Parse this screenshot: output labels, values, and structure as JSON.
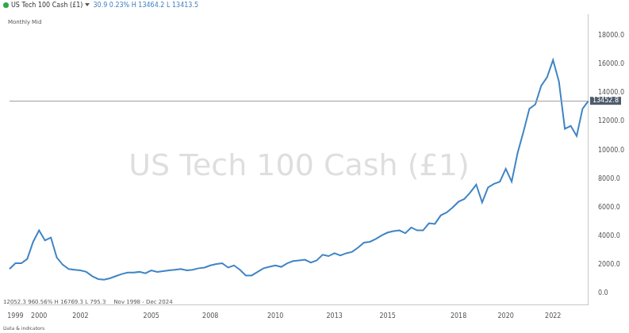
{
  "chart_data": {
    "type": "line",
    "title": "US Tech 100 Cash (£1)",
    "subtitle": "30.9 0.23% H 13464.2 L 13413.5",
    "annotations": [
      "Monthly",
      "Mid",
      "12052.3 960.56% H 16769.3 L 795.3",
      "Nov 1998 - Dec 2024",
      "Data & indicators"
    ],
    "last_value": 13452.8,
    "color": "#3f84c5",
    "grid": false,
    "categories": [
      null,
      "1999",
      null,
      null,
      null,
      "2000",
      null,
      null,
      null,
      null,
      null,
      null,
      "2002",
      null,
      null,
      null,
      null,
      null,
      null,
      null,
      null,
      null,
      null,
      null,
      "2005",
      null,
      null,
      null,
      null,
      null,
      null,
      null,
      null,
      null,
      "2008",
      null,
      null,
      null,
      null,
      null,
      null,
      null,
      null,
      null,
      null,
      "2010",
      null,
      null,
      null,
      null,
      null,
      null,
      null,
      null,
      null,
      "2013",
      null,
      null,
      null,
      null,
      null,
      null,
      null,
      null,
      "2015",
      null,
      null,
      null,
      null,
      null,
      null,
      null,
      null,
      null,
      null,
      null,
      "2018",
      null,
      null,
      null,
      null,
      null,
      null,
      null,
      "2020",
      null,
      null,
      null,
      null,
      null,
      null,
      null,
      "2022",
      null,
      null,
      null,
      null,
      null,
      null
    ],
    "values": [
      1700,
      2100,
      2100,
      2400,
      3600,
      4400,
      3700,
      3900,
      2500,
      2000,
      1700,
      1650,
      1600,
      1500,
      1200,
      1000,
      950,
      1050,
      1200,
      1350,
      1450,
      1450,
      1500,
      1400,
      1600,
      1500,
      1550,
      1600,
      1650,
      1700,
      1600,
      1650,
      1750,
      1800,
      1950,
      2050,
      2100,
      1800,
      1950,
      1650,
      1250,
      1250,
      1500,
      1750,
      1850,
      1950,
      1850,
      2100,
      2250,
      2300,
      2350,
      2150,
      2300,
      2700,
      2600,
      2800,
      2650,
      2800,
      2900,
      3200,
      3550,
      3600,
      3800,
      4050,
      4250,
      4350,
      4400,
      4200,
      4600,
      4400,
      4400,
      4900,
      4850,
      5450,
      5650,
      6000,
      6400,
      6600,
      7050,
      7600,
      6350,
      7400,
      7650,
      7800,
      8700,
      7800,
      9800,
      11300,
      12900,
      13200,
      14500,
      15100,
      16300,
      14800,
      11500,
      11700,
      11000,
      12900,
      13450
    ],
    "ylim": [
      -800,
      19500
    ],
    "yticks": [
      {
        "value": 0,
        "label": "0.0"
      },
      {
        "value": 2000,
        "label": "2000.0"
      },
      {
        "value": 4000,
        "label": "4000.0"
      },
      {
        "value": 6000,
        "label": "6000.0"
      },
      {
        "value": 8000,
        "label": "8000.0"
      },
      {
        "value": 10000,
        "label": "10000.0"
      },
      {
        "value": 12000,
        "label": "12000.0"
      },
      {
        "value": 14000,
        "label": "14000.0"
      },
      {
        "value": 16000,
        "label": "16000.0"
      },
      {
        "value": 18000,
        "label": "18000.0"
      }
    ]
  }
}
